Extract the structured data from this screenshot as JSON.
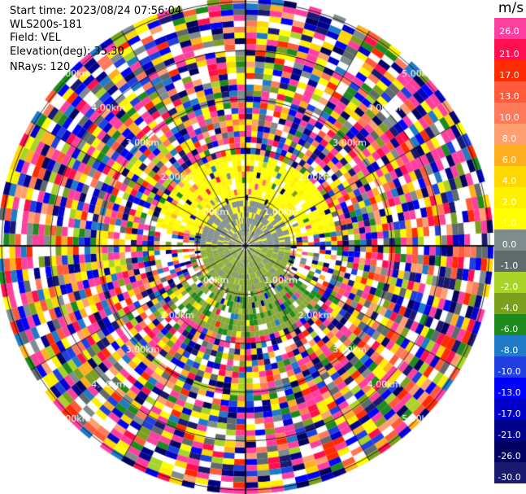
{
  "header": {
    "start_time": "Start time: 2023/08/24 07:56:04",
    "station": "WLS200s-181",
    "field": "Field: VEL",
    "elevation": "Elevation(deg): 35.30",
    "nrays": "NRays: 120"
  },
  "range_labels": {
    "r1": "1.00km",
    "r2": "2.00km",
    "r3": "3.00km",
    "r4": "4.00km",
    "r5": "5.00km"
  },
  "colorbar": {
    "unit": "m/s",
    "levels": [
      {
        "label": "26.0",
        "color": "#ff3fa0"
      },
      {
        "label": "21.0",
        "color": "#ff0f4f"
      },
      {
        "label": "17.0",
        "color": "#ff2a00"
      },
      {
        "label": "13.0",
        "color": "#ff5a3a"
      },
      {
        "label": "10.0",
        "color": "#ff7a5a"
      },
      {
        "label": "8.0",
        "color": "#ffa070"
      },
      {
        "label": "6.0",
        "color": "#ffb020"
      },
      {
        "label": "4.0",
        "color": "#ffd800"
      },
      {
        "label": "2.0",
        "color": "#fff000"
      },
      {
        "label": "1.0",
        "color": "#ffff00"
      },
      {
        "label": "0.0",
        "color": "#7f8c8d"
      },
      {
        "label": "-1.0",
        "color": "#5f6a6a"
      },
      {
        "label": "-2.0",
        "color": "#a8d428"
      },
      {
        "label": "-4.0",
        "color": "#7aa01e"
      },
      {
        "label": "-6.0",
        "color": "#1e8a1e"
      },
      {
        "label": "-8.0",
        "color": "#1f7ac8"
      },
      {
        "label": "-10.0",
        "color": "#1f3fe0"
      },
      {
        "label": "-13.0",
        "color": "#0000ff"
      },
      {
        "label": "-17.0",
        "color": "#0000c8"
      },
      {
        "label": "-21.0",
        "color": "#00008a"
      },
      {
        "label": "-26.0",
        "color": "#000060"
      },
      {
        "label": "-30.0",
        "color": "#191970"
      }
    ]
  }
}
